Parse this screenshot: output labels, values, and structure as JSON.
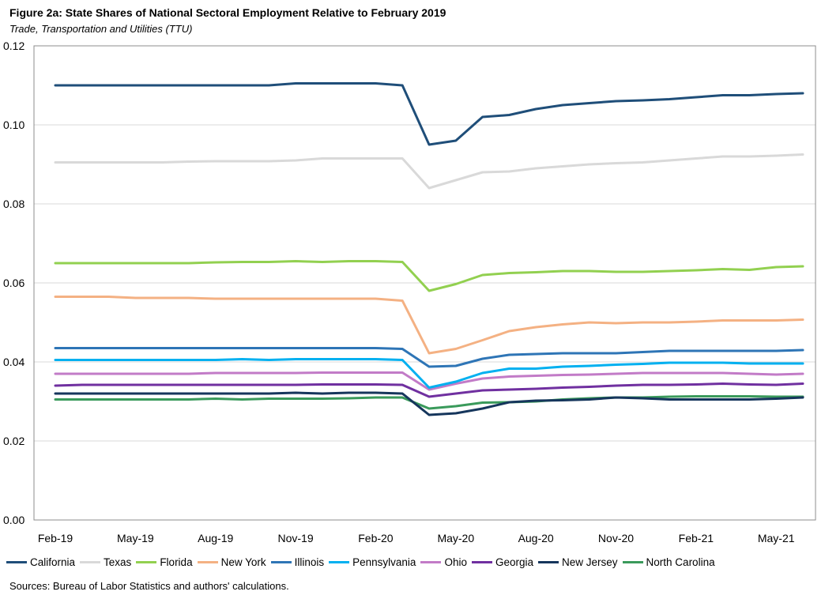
{
  "header": {
    "title": "Figure 2a: State Shares of National Sectoral Employment Relative to February 2019",
    "subtitle": "Trade, Transportation and Utilities (TTU)"
  },
  "source": "Sources: Bureau of Labor Statistics and authors' calculations.",
  "chart_data": {
    "type": "line",
    "title": "Figure 2a: State Shares of National Sectoral Employment Relative to February 2019",
    "subtitle": "Trade, Transportation and Utilities (TTU)",
    "xlabel": "",
    "ylabel": "",
    "ylim": [
      0,
      0.12
    ],
    "yticks": [
      "0.00",
      "0.02",
      "0.04",
      "0.06",
      "0.08",
      "0.10",
      "0.12"
    ],
    "x": [
      "Feb-19",
      "Mar-19",
      "Apr-19",
      "May-19",
      "Jun-19",
      "Jul-19",
      "Aug-19",
      "Sep-19",
      "Oct-19",
      "Nov-19",
      "Dec-19",
      "Jan-20",
      "Feb-20",
      "Mar-20",
      "Apr-20",
      "May-20",
      "Jun-20",
      "Jul-20",
      "Aug-20",
      "Sep-20",
      "Oct-20",
      "Nov-20",
      "Dec-20",
      "Jan-21",
      "Feb-21",
      "Mar-21",
      "Apr-21",
      "May-21",
      "Jun-21"
    ],
    "xtick_labels": [
      "Feb-19",
      "May-19",
      "Aug-19",
      "Nov-19",
      "Feb-20",
      "May-20",
      "Aug-20",
      "Nov-20",
      "Feb-21",
      "May-21"
    ],
    "grid": "horizontal",
    "legend_position": "bottom",
    "series": [
      {
        "name": "California",
        "color": "#1f4e79",
        "values": [
          0.11,
          0.11,
          0.11,
          0.11,
          0.11,
          0.11,
          0.11,
          0.11,
          0.11,
          0.1105,
          0.1105,
          0.1105,
          0.1105,
          0.11,
          0.095,
          0.096,
          0.102,
          0.1025,
          0.104,
          0.105,
          0.1055,
          0.106,
          0.1062,
          0.1065,
          0.107,
          0.1075,
          0.1075,
          0.1078,
          0.108
        ]
      },
      {
        "name": "Texas",
        "color": "#d9d9d9",
        "values": [
          0.0905,
          0.0905,
          0.0905,
          0.0905,
          0.0905,
          0.0907,
          0.0908,
          0.0908,
          0.0908,
          0.091,
          0.0915,
          0.0915,
          0.0915,
          0.0915,
          0.084,
          0.086,
          0.088,
          0.0882,
          0.089,
          0.0895,
          0.09,
          0.0903,
          0.0905,
          0.091,
          0.0915,
          0.092,
          0.092,
          0.0922,
          0.0925
        ]
      },
      {
        "name": "Florida",
        "color": "#92d050",
        "values": [
          0.065,
          0.065,
          0.065,
          0.065,
          0.065,
          0.065,
          0.0652,
          0.0653,
          0.0653,
          0.0655,
          0.0653,
          0.0655,
          0.0655,
          0.0653,
          0.058,
          0.0597,
          0.062,
          0.0625,
          0.0627,
          0.063,
          0.063,
          0.0628,
          0.0628,
          0.063,
          0.0632,
          0.0635,
          0.0633,
          0.064,
          0.0642
        ]
      },
      {
        "name": "New York",
        "color": "#f4b183",
        "values": [
          0.0565,
          0.0565,
          0.0565,
          0.0562,
          0.0562,
          0.0562,
          0.056,
          0.056,
          0.056,
          0.056,
          0.056,
          0.056,
          0.056,
          0.0555,
          0.0422,
          0.0433,
          0.0455,
          0.0478,
          0.0488,
          0.0495,
          0.05,
          0.0498,
          0.05,
          0.05,
          0.0502,
          0.0505,
          0.0505,
          0.0505,
          0.0507
        ]
      },
      {
        "name": "Illinois",
        "color": "#2e75b6",
        "values": [
          0.0435,
          0.0435,
          0.0435,
          0.0435,
          0.0435,
          0.0435,
          0.0435,
          0.0435,
          0.0435,
          0.0435,
          0.0435,
          0.0435,
          0.0435,
          0.0433,
          0.0388,
          0.039,
          0.0408,
          0.0418,
          0.042,
          0.0422,
          0.0422,
          0.0422,
          0.0425,
          0.0428,
          0.0428,
          0.0428,
          0.0428,
          0.0428,
          0.043
        ]
      },
      {
        "name": "Pennsylvania",
        "color": "#00b0f0",
        "values": [
          0.0405,
          0.0405,
          0.0405,
          0.0405,
          0.0405,
          0.0405,
          0.0405,
          0.0407,
          0.0405,
          0.0407,
          0.0407,
          0.0407,
          0.0407,
          0.0405,
          0.0335,
          0.035,
          0.0372,
          0.0383,
          0.0383,
          0.0388,
          0.039,
          0.0393,
          0.0395,
          0.0398,
          0.0398,
          0.0398,
          0.0396,
          0.0396,
          0.0396
        ]
      },
      {
        "name": "Ohio",
        "color": "#c27bc7",
        "values": [
          0.037,
          0.037,
          0.037,
          0.037,
          0.037,
          0.037,
          0.0372,
          0.0372,
          0.0372,
          0.0372,
          0.0373,
          0.0373,
          0.0373,
          0.0373,
          0.033,
          0.0345,
          0.0358,
          0.0363,
          0.0365,
          0.0367,
          0.0368,
          0.037,
          0.0372,
          0.0372,
          0.0372,
          0.0372,
          0.037,
          0.0368,
          0.037
        ]
      },
      {
        "name": "Georgia",
        "color": "#7030a0",
        "values": [
          0.034,
          0.0342,
          0.0342,
          0.0342,
          0.0342,
          0.0342,
          0.0342,
          0.0342,
          0.0342,
          0.0342,
          0.0343,
          0.0343,
          0.0343,
          0.0342,
          0.0312,
          0.032,
          0.0328,
          0.033,
          0.0332,
          0.0335,
          0.0337,
          0.034,
          0.0342,
          0.0342,
          0.0343,
          0.0345,
          0.0343,
          0.0342,
          0.0345
        ]
      },
      {
        "name": "New Jersey",
        "color": "#16365c",
        "values": [
          0.032,
          0.032,
          0.032,
          0.032,
          0.032,
          0.032,
          0.032,
          0.032,
          0.032,
          0.0322,
          0.032,
          0.0322,
          0.0322,
          0.032,
          0.0266,
          0.027,
          0.0282,
          0.0298,
          0.0302,
          0.0303,
          0.0305,
          0.031,
          0.0308,
          0.0305,
          0.0305,
          0.0305,
          0.0305,
          0.0307,
          0.031
        ]
      },
      {
        "name": "North Carolina",
        "color": "#3a9a5b",
        "values": [
          0.0305,
          0.0305,
          0.0305,
          0.0305,
          0.0305,
          0.0305,
          0.0307,
          0.0305,
          0.0307,
          0.0307,
          0.0307,
          0.0308,
          0.031,
          0.031,
          0.0282,
          0.0288,
          0.0297,
          0.0298,
          0.03,
          0.0305,
          0.0308,
          0.031,
          0.031,
          0.0312,
          0.0313,
          0.0313,
          0.0313,
          0.0312,
          0.0312
        ]
      }
    ]
  }
}
